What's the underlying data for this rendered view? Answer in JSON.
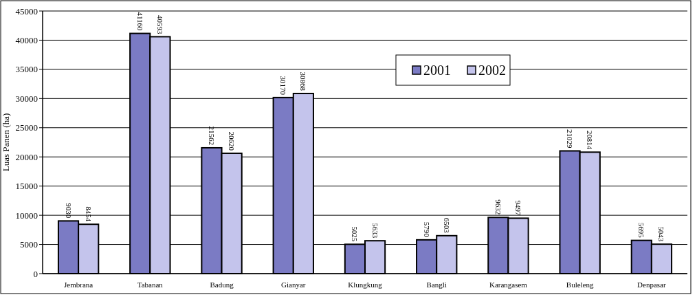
{
  "chart_data": {
    "type": "bar",
    "ylabel": "Luas Panen (ha)",
    "categories": [
      "Jembrana",
      "Tabanan",
      "Badung",
      "Gianyar",
      "Klungkung",
      "Bangli",
      "Karangasem",
      "Buleleng",
      "Denpasar"
    ],
    "series": [
      {
        "name": "2001",
        "color": "#7b7bc4",
        "values": [
          9030,
          41160,
          21562,
          30170,
          5025,
          5790,
          9632,
          21029,
          5695
        ]
      },
      {
        "name": "2002",
        "color": "#c4c4ec",
        "values": [
          8454,
          40593,
          20620,
          30868,
          5633,
          6503,
          9497,
          20814,
          5043
        ]
      }
    ],
    "ylim": [
      0,
      45000
    ],
    "yticks": [
      0,
      5000,
      10000,
      15000,
      20000,
      25000,
      30000,
      35000,
      40000,
      45000
    ],
    "grid": "y",
    "legend": "top right",
    "data_labels": true
  }
}
